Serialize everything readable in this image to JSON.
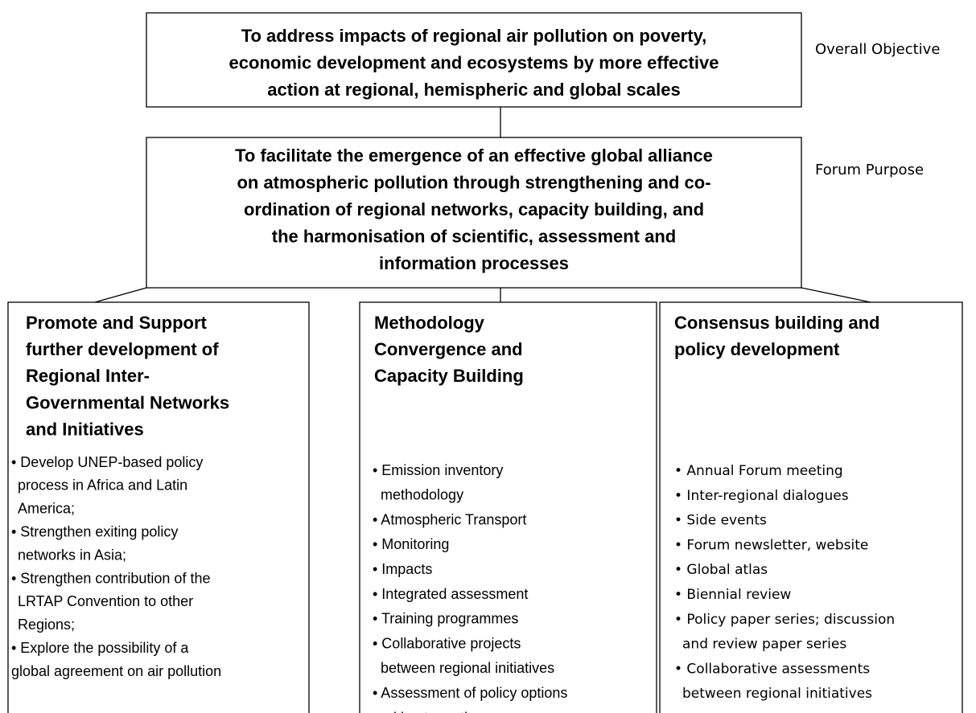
{
  "objective": {
    "label": "Overall Objective",
    "lines": [
      "To address impacts of regional air pollution on poverty,",
      "economic development and ecosystems by more effective",
      "action at regional, hemispheric and global scales"
    ]
  },
  "purpose": {
    "label": "Forum Purpose",
    "lines": [
      "To facilitate the emergence of an effective global alliance",
      "on atmospheric pollution through strengthening and co-",
      "ordination of regional networks, capacity building, and",
      "the harmonisation of scientific, assessment and",
      "information processes"
    ]
  },
  "columns": [
    {
      "title": [
        "Promote and Support",
        "further development of",
        "Regional Inter-",
        "Governmental Networks",
        "and Initiatives"
      ],
      "items": [
        [
          "• Develop UNEP-based policy",
          "process in Africa and Latin",
          "America;"
        ],
        [
          "• Strengthen exiting policy",
          "networks in Asia;"
        ],
        [
          "• Strengthen contribution of the",
          "LRTAP Convention to other",
          "Regions;"
        ],
        [
          "• Explore the possibility of a",
          "global agreement on air pollution"
        ]
      ]
    },
    {
      "title": [
        "Methodology",
        "Convergence and",
        "Capacity Building"
      ],
      "items": [
        [
          "• Emission inventory",
          "methodology"
        ],
        [
          "• Atmospheric Transport"
        ],
        [
          "• Monitoring"
        ],
        [
          "• Impacts"
        ],
        [
          "• Integrated assessment"
        ],
        [
          "• Training programmes"
        ],
        [
          "• Collaborative projects",
          "between regional initiatives"
        ],
        [
          "• Assessment of policy options",
          "and best practice"
        ]
      ]
    },
    {
      "title": [
        "Consensus building and",
        "policy development"
      ],
      "items": [
        [
          "• Annual Forum meeting"
        ],
        [
          "• Inter-regional dialogues"
        ],
        [
          "• Side events"
        ],
        [
          "• Forum newsletter, website"
        ],
        [
          "• Global atlas"
        ],
        [
          "• Biennial review"
        ],
        [
          "• Policy paper series; discussion",
          "and review paper series"
        ],
        [
          "• Collaborative assessments",
          "between regional initiatives"
        ]
      ]
    }
  ]
}
